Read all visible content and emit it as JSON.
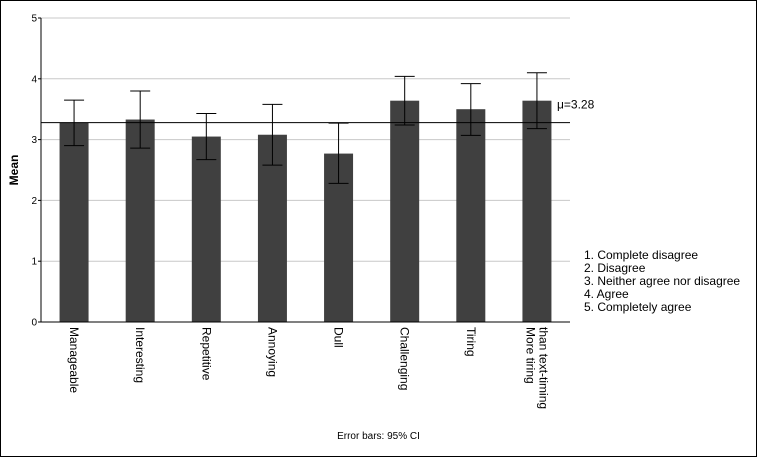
{
  "chart_data": {
    "type": "bar",
    "categories": [
      "Manageable",
      "Interesting",
      "Repetitive",
      "Annoying",
      "Dull",
      "Challenging",
      "Tiring",
      "More tiring than text-timing"
    ],
    "category_lines": [
      [
        "Manageable"
      ],
      [
        "Interesting"
      ],
      [
        "Repetitive"
      ],
      [
        "Annoying"
      ],
      [
        "Dull"
      ],
      [
        "Challenging"
      ],
      [
        "Tiring"
      ],
      [
        "More tiring",
        "than text-timing"
      ]
    ],
    "values": [
      3.28,
      3.33,
      3.05,
      3.08,
      2.77,
      3.64,
      3.5,
      3.64
    ],
    "ci_low": [
      2.9,
      2.86,
      2.67,
      2.58,
      2.28,
      3.24,
      3.07,
      3.18
    ],
    "ci_high": [
      3.65,
      3.8,
      3.43,
      3.58,
      3.27,
      4.04,
      3.92,
      4.1
    ],
    "ylabel": "Mean",
    "ylim": [
      0,
      5
    ],
    "yticks": [
      "0",
      "1",
      "2",
      "3",
      "4",
      "5"
    ],
    "grid": true,
    "reference_line": {
      "value": 3.28,
      "label": "μ=3.28"
    },
    "legend": [
      "1. Complete disagree",
      "2. Disagree",
      "3. Neither agree nor disagree",
      "4. Agree",
      "5. Completely agree"
    ],
    "footnote": "Error bars: 95% CI",
    "colors": {
      "bar": "#404040",
      "grid": "#c8c8c8",
      "axis": "#000000"
    }
  }
}
